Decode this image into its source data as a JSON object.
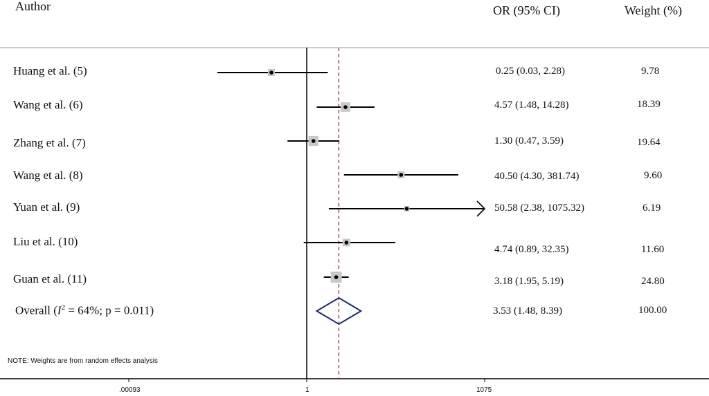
{
  "chart_data": {
    "type": "forest",
    "headers": {
      "author": "Author",
      "or_ci": "OR (95% CI)",
      "weight": "Weight  (%)"
    },
    "studies": [
      {
        "author": "Huang et al. (5)",
        "or": 0.25,
        "lo": 0.03,
        "hi": 2.28,
        "or_text": "0.25 (0.03, 2.28)",
        "weight": 9.78,
        "weight_text": "9.78"
      },
      {
        "author": "Wang et al. (6)",
        "or": 4.57,
        "lo": 1.48,
        "hi": 14.28,
        "or_text": "4.57 (1.48, 14.28)",
        "weight": 18.39,
        "weight_text": "18.39"
      },
      {
        "author": "Zhang et al. (7)",
        "or": 1.3,
        "lo": 0.47,
        "hi": 3.59,
        "or_text": "1.30 (0.47, 3.59)",
        "weight": 19.64,
        "weight_text": "19.64"
      },
      {
        "author": "Wang et al. (8)",
        "or": 40.5,
        "lo": 4.3,
        "hi": 381.74,
        "or_text": "40.50 (4.30, 381.74)",
        "weight": 9.6,
        "weight_text": "9.60"
      },
      {
        "author": "Yuan et al. (9)",
        "or": 50.58,
        "lo": 2.38,
        "hi": 1075.32,
        "or_text": "50.58 (2.38, 1075.32)",
        "weight": 6.19,
        "weight_text": "6.19",
        "truncated": true
      },
      {
        "author": "Liu et al. (10)",
        "or": 4.74,
        "lo": 0.89,
        "hi": 32.35,
        "or_text": "4.74 (0.89, 32.35)",
        "weight": 11.6,
        "weight_text": "11.60"
      },
      {
        "author": "Guan et al. (11)",
        "or": 3.18,
        "lo": 1.95,
        "hi": 5.19,
        "or_text": "3.18 (1.95, 5.19)",
        "weight": 24.8,
        "weight_text": "24.80"
      }
    ],
    "overall": {
      "label_prefix": "Overall (",
      "label_i": "I",
      "label_sup": "2",
      "label_suffix": " = 64%; p = 0.011)",
      "or": 3.53,
      "lo": 1.48,
      "hi": 8.39,
      "or_text": "3.53 (1.48, 8.39)",
      "weight_text": "100.00"
    },
    "x_scale": "log",
    "xlim": [
      0.00093,
      1075
    ],
    "x_ticks": [
      {
        "value": 0.00093,
        "label": ".00093"
      },
      {
        "value": 1,
        "label": "1"
      },
      {
        "value": 1075,
        "label": "1075"
      }
    ],
    "null_value": 1,
    "note": "NOTE: Weights are from random effects analysis",
    "colors": {
      "text": "#111111",
      "line": "#000000",
      "weight_box": "#c8c8c8",
      "overall_diamond": "#1a2a6c",
      "overall_line": "#8b1a1a",
      "header_rule": "#bbbbbb"
    }
  }
}
